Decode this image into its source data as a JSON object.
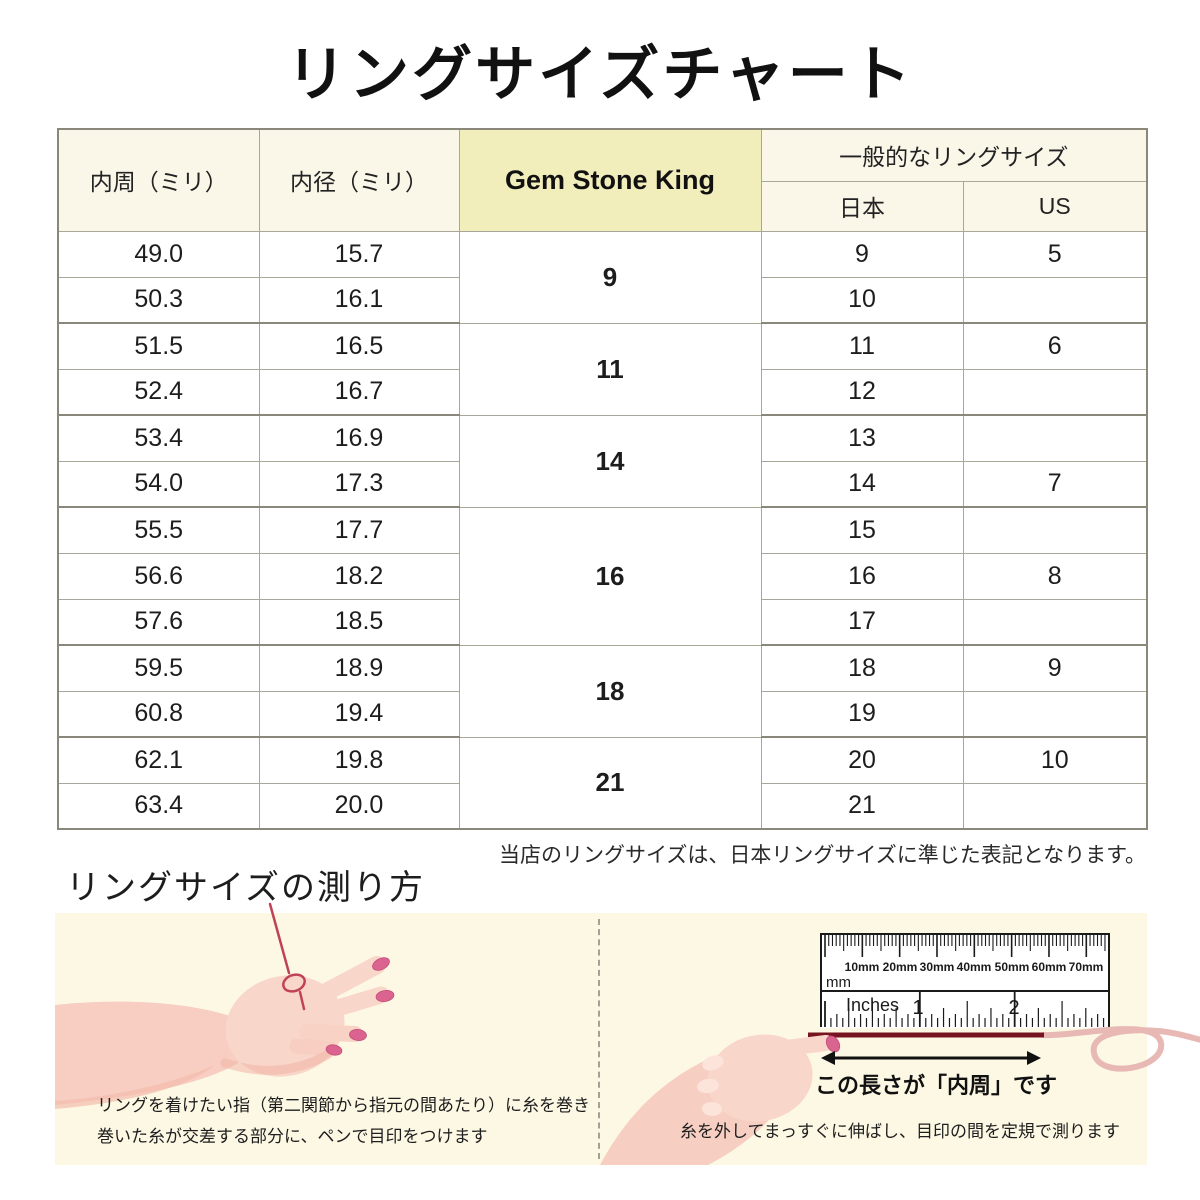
{
  "title": "リングサイズチャート",
  "table": {
    "col_inner_circumference": "内周（ミリ）",
    "col_inner_diameter": "内径（ミリ）",
    "col_brand": "Gem Stone King",
    "col_common_sizes": "一般的なリングサイズ",
    "col_japan": "日本",
    "col_us": "US",
    "gsk": [
      "9",
      "11",
      "14",
      "16",
      "18",
      "21"
    ],
    "rows": [
      {
        "c": "49.0",
        "d": "15.7",
        "jp": "9",
        "us": "5"
      },
      {
        "c": "50.3",
        "d": "16.1",
        "jp": "10",
        "us": ""
      },
      {
        "c": "51.5",
        "d": "16.5",
        "jp": "11",
        "us": "6"
      },
      {
        "c": "52.4",
        "d": "16.7",
        "jp": "12",
        "us": ""
      },
      {
        "c": "53.4",
        "d": "16.9",
        "jp": "13",
        "us": ""
      },
      {
        "c": "54.0",
        "d": "17.3",
        "jp": "14",
        "us": "7"
      },
      {
        "c": "55.5",
        "d": "17.7",
        "jp": "15",
        "us": ""
      },
      {
        "c": "56.6",
        "d": "18.2",
        "jp": "16",
        "us": "8"
      },
      {
        "c": "57.6",
        "d": "18.5",
        "jp": "17",
        "us": ""
      },
      {
        "c": "59.5",
        "d": "18.9",
        "jp": "18",
        "us": "9"
      },
      {
        "c": "60.8",
        "d": "19.4",
        "jp": "19",
        "us": ""
      },
      {
        "c": "62.1",
        "d": "19.8",
        "jp": "20",
        "us": "10"
      },
      {
        "c": "63.4",
        "d": "20.0",
        "jp": "21",
        "us": ""
      }
    ]
  },
  "note": "当店のリングサイズは、日本リングサイズに準じた表記となります。",
  "measure": {
    "heading": "リングサイズの測り方",
    "left_caption_1": "リングを着けたい指（第二関節から指元の間あたり）に糸を巻き",
    "left_caption_2": "巻いた糸が交差する部分に、ペンで目印をつけます",
    "length_label": "この長さが「内周」です",
    "right_caption": "糸を外してまっすぐに伸ばし、目印の間を定規で測ります",
    "ruler": {
      "mm_unit": "mm",
      "mm_labels": [
        "10mm",
        "20mm",
        "30mm",
        "40mm",
        "50mm",
        "60mm",
        "70mm"
      ],
      "inches_label": "Inches",
      "inch_numbers": [
        "1",
        "2"
      ]
    }
  },
  "colors": {
    "brand_cell": "#f1eebc",
    "header_cell": "#faf6e8",
    "panel_bg": "#fdf8e4",
    "thread_dark_red": "#761420",
    "thread_pink": "#e8b8b4",
    "skin": "#f9d6ca",
    "nail_pink": "#db6390"
  }
}
